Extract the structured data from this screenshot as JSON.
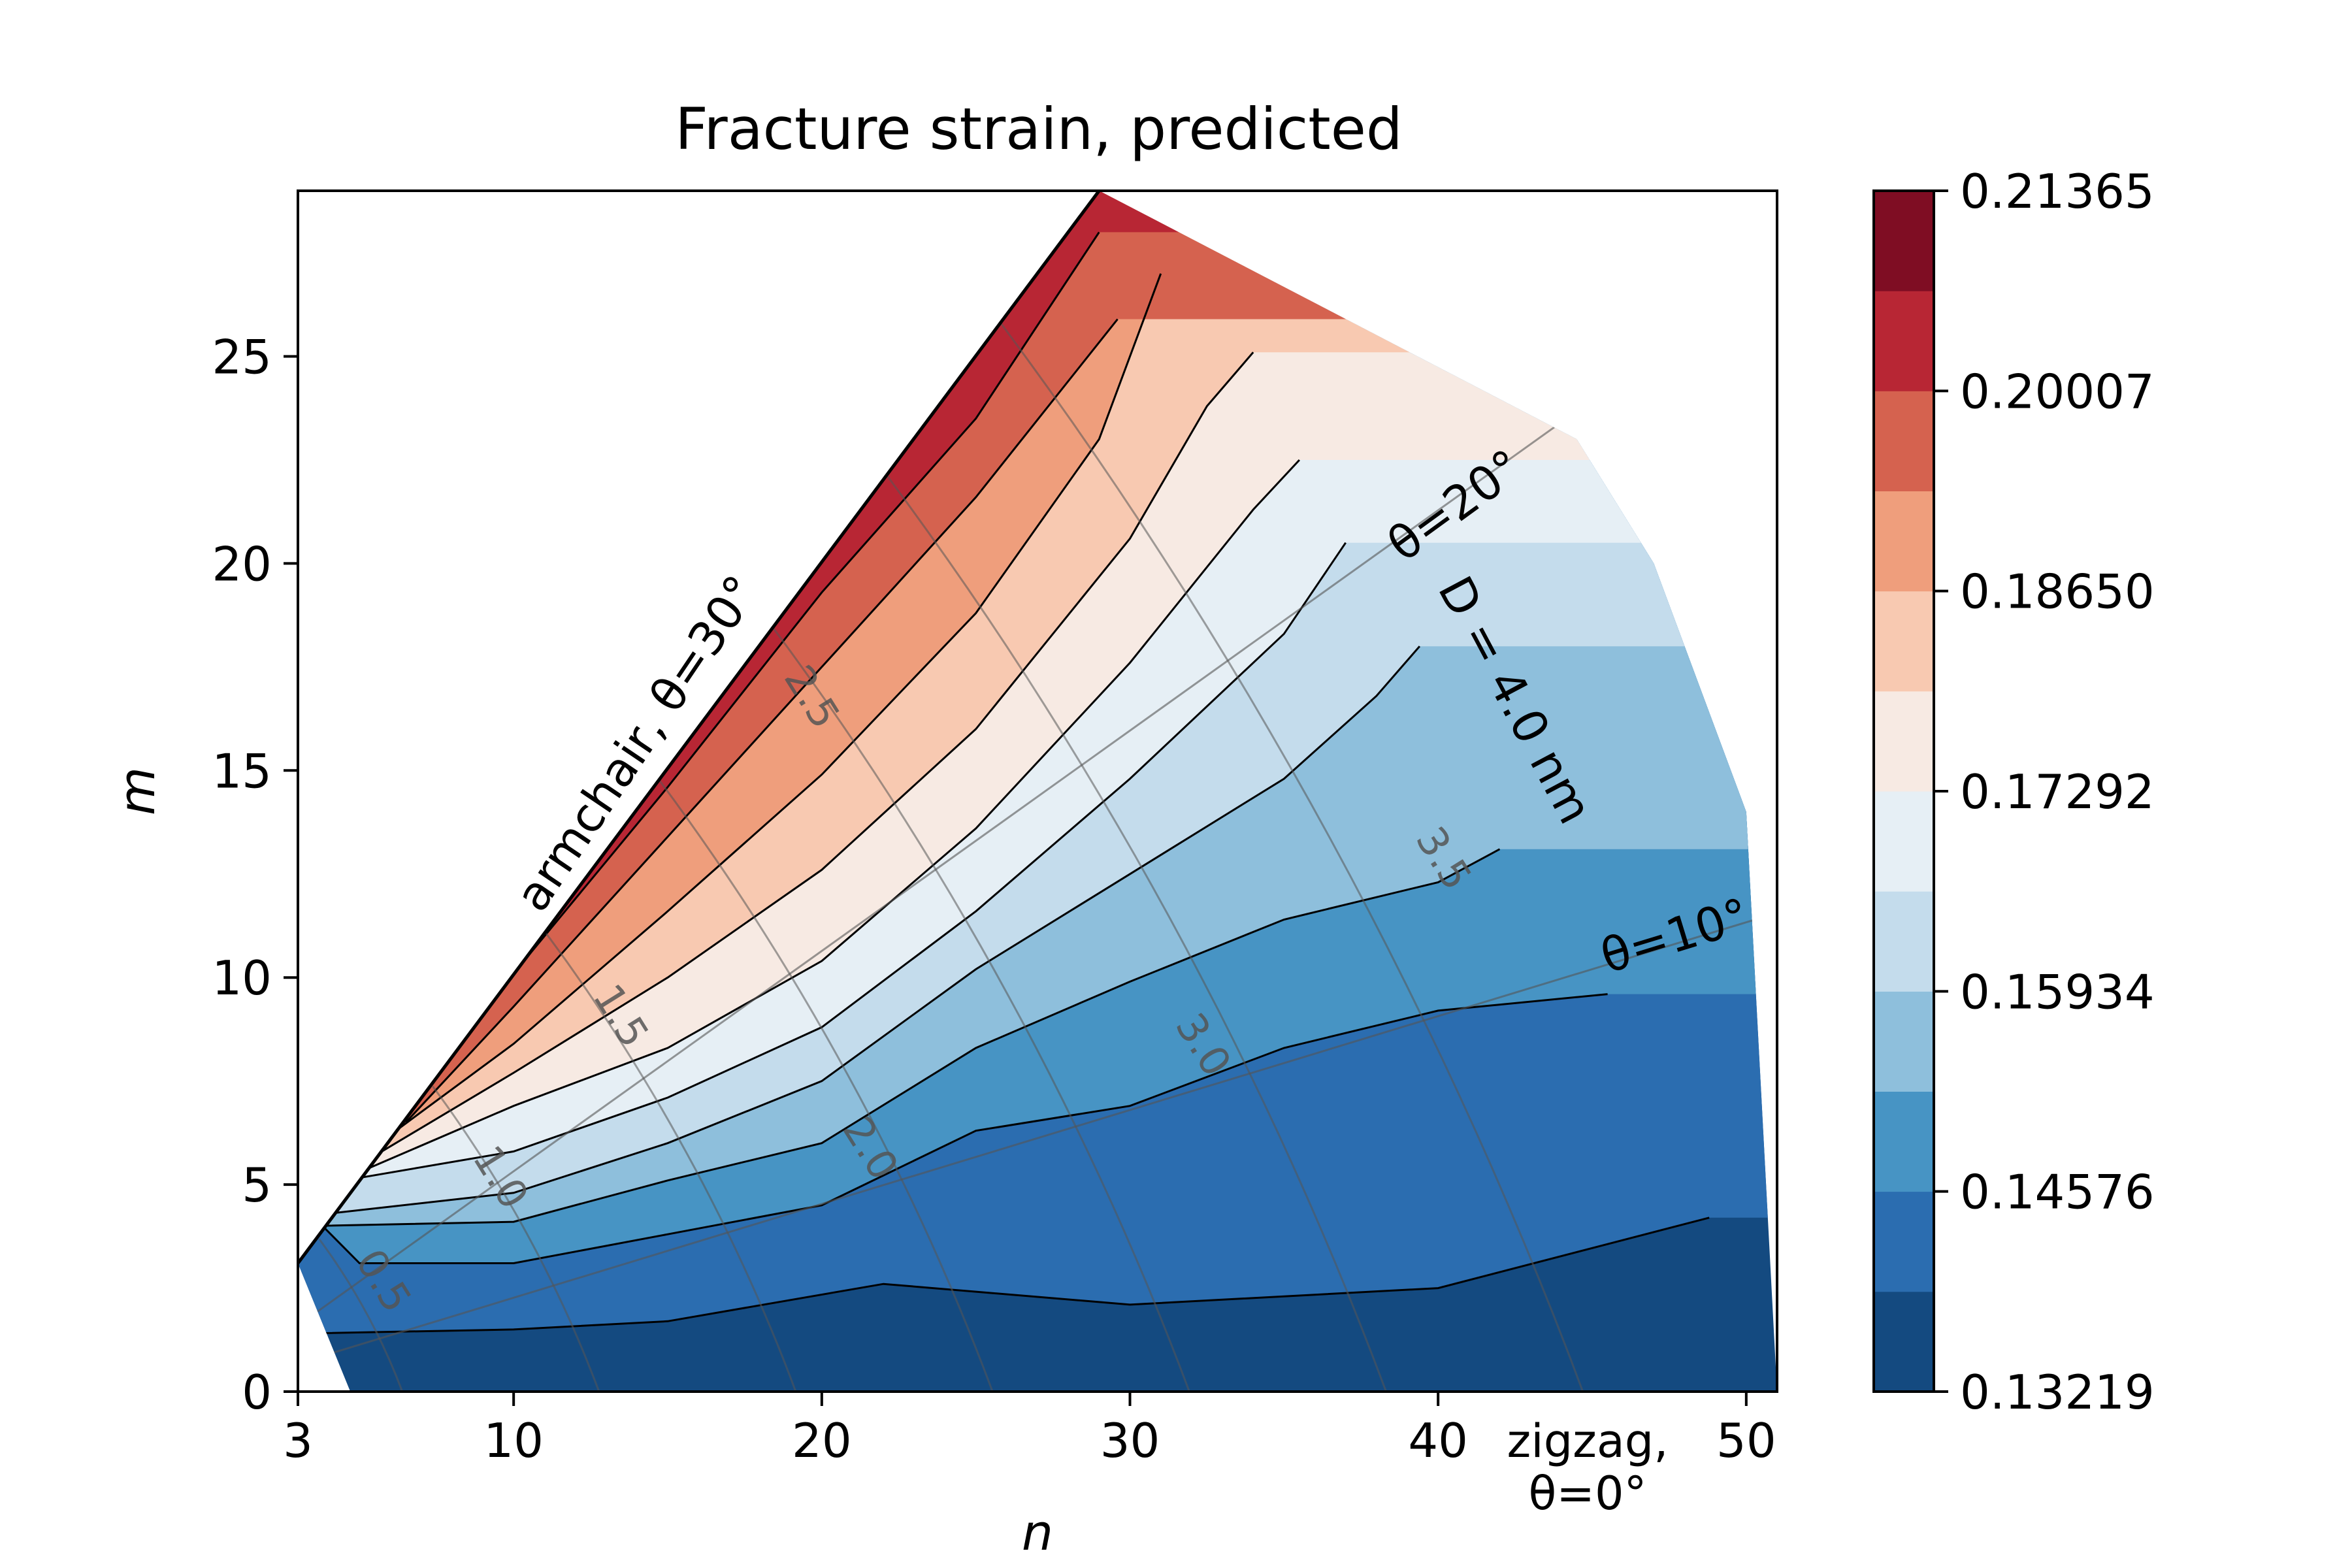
{
  "chart_data": {
    "type": "contour",
    "title": "Fracture strain, predicted",
    "xlabel": "n",
    "ylabel": "m",
    "xlim": [
      3,
      51
    ],
    "ylim": [
      0,
      29
    ],
    "xticks": [
      {
        "value": 3,
        "label": "3"
      },
      {
        "value": 10,
        "label": "10"
      },
      {
        "value": 20,
        "label": "20"
      },
      {
        "value": 30,
        "label": "30"
      },
      {
        "value": 40,
        "label": "40"
      },
      {
        "value": 50,
        "label": "50"
      }
    ],
    "yticks": [
      {
        "value": 0,
        "label": "0"
      },
      {
        "value": 5,
        "label": "5"
      },
      {
        "value": 10,
        "label": "10"
      },
      {
        "value": 15,
        "label": "15"
      },
      {
        "value": 20,
        "label": "20"
      },
      {
        "value": 25,
        "label": "25"
      }
    ],
    "colorbar": {
      "min": 0.13219,
      "max": 0.21365,
      "levels": 12,
      "colors": [
        "#144a80",
        "#2b6db0",
        "#4794c4",
        "#8ebfdc",
        "#c4dcec",
        "#e6eff5",
        "#f7eae3",
        "#f8c9b1",
        "#ef9e7c",
        "#d5624f",
        "#b82634",
        "#7f0d23"
      ],
      "tick_labels": [
        "0.13219",
        "0.14576",
        "0.15934",
        "0.17292",
        "0.18650",
        "0.20007",
        "0.21365"
      ]
    },
    "field": {
      "description_of_regions": "band k spans between boundary k-1 and k",
      "boundaries": [
        [
          [
            3,
            1.4
          ],
          [
            10,
            1.5
          ],
          [
            15,
            1.7
          ],
          [
            22,
            2.6
          ],
          [
            30,
            2.1
          ],
          [
            40,
            2.5
          ],
          [
            48.8,
            4.2
          ]
        ],
        [
          [
            3,
            4.6
          ],
          [
            5,
            3.1
          ],
          [
            10,
            3.1
          ],
          [
            15,
            3.8
          ],
          [
            20,
            4.5
          ],
          [
            25,
            6.3
          ],
          [
            30,
            6.9
          ],
          [
            35,
            8.3
          ],
          [
            40,
            9.2
          ],
          [
            45.5,
            9.6
          ]
        ],
        [
          [
            3.5,
            4.0
          ],
          [
            10,
            4.1
          ],
          [
            15,
            5.1
          ],
          [
            20,
            6.0
          ],
          [
            25,
            8.3
          ],
          [
            30,
            9.9
          ],
          [
            35,
            11.4
          ],
          [
            40,
            12.3
          ],
          [
            42,
            13.1
          ]
        ],
        [
          [
            4,
            4.3
          ],
          [
            10,
            4.8
          ],
          [
            15,
            6.0
          ],
          [
            20,
            7.5
          ],
          [
            25,
            10.2
          ],
          [
            30,
            12.5
          ],
          [
            35,
            14.8
          ],
          [
            38,
            16.8
          ],
          [
            39.4,
            18.0
          ]
        ],
        [
          [
            4.5,
            5.1
          ],
          [
            10,
            5.8
          ],
          [
            15,
            7.1
          ],
          [
            20,
            8.8
          ],
          [
            25,
            11.6
          ],
          [
            30,
            14.8
          ],
          [
            35,
            18.3
          ],
          [
            37,
            20.5
          ]
        ],
        [
          [
            5,
            5.3
          ],
          [
            10,
            6.9
          ],
          [
            15,
            8.3
          ],
          [
            20,
            10.4
          ],
          [
            25,
            13.6
          ],
          [
            30,
            17.6
          ],
          [
            34,
            21.3
          ],
          [
            35.5,
            22.5
          ]
        ],
        [
          [
            5.5,
            5.7
          ],
          [
            10,
            7.7
          ],
          [
            15,
            10.0
          ],
          [
            20,
            12.6
          ],
          [
            25,
            16.0
          ],
          [
            30,
            20.6
          ],
          [
            32.5,
            23.8
          ],
          [
            34,
            25.1
          ]
        ],
        [
          [
            6,
            6.2
          ],
          [
            10,
            8.4
          ],
          [
            15,
            11.6
          ],
          [
            20,
            14.9
          ],
          [
            25,
            18.8
          ],
          [
            29,
            23.0
          ],
          [
            31,
            27.0
          ]
        ],
        [
          [
            6.5,
            6.5
          ],
          [
            10,
            9.3
          ],
          [
            15,
            13.4
          ],
          [
            20,
            17.5
          ],
          [
            25,
            21.6
          ],
          [
            29.6,
            25.9
          ]
        ],
        [
          [
            7,
            7.2
          ],
          [
            10,
            10.1
          ],
          [
            15,
            14.6
          ],
          [
            20,
            19.3
          ],
          [
            25,
            23.5
          ],
          [
            29,
            28.0
          ]
        ]
      ]
    },
    "domain_outline": [
      [
        3,
        3.1
      ],
      [
        29,
        29
      ],
      [
        44.5,
        23
      ],
      [
        47,
        20
      ],
      [
        50,
        14
      ],
      [
        51,
        0
      ],
      [
        4.7,
        0
      ],
      [
        3,
        3.1
      ]
    ],
    "diameter_contours": {
      "labels": [
        "0.5",
        "1.0",
        "1.5",
        "2.0",
        "2.5",
        "3.0",
        "3.5"
      ],
      "values_nm": [
        0.5,
        1.0,
        1.5,
        2.0,
        2.5,
        3.0,
        3.5
      ]
    },
    "annotations": [
      {
        "text": "armchair, θ=30°",
        "kind": "edge-label"
      },
      {
        "text": "θ=20°",
        "kind": "angle-line-label"
      },
      {
        "text": "θ=10°",
        "kind": "angle-line-label"
      },
      {
        "text": "D = 4.0 nm",
        "kind": "edge-label"
      },
      {
        "text": "zigzag,",
        "kind": "edge-label"
      },
      {
        "text": "θ=0°",
        "kind": "edge-label"
      }
    ],
    "angle_lines_deg": [
      10,
      20
    ],
    "legend": "none",
    "grid": false
  }
}
